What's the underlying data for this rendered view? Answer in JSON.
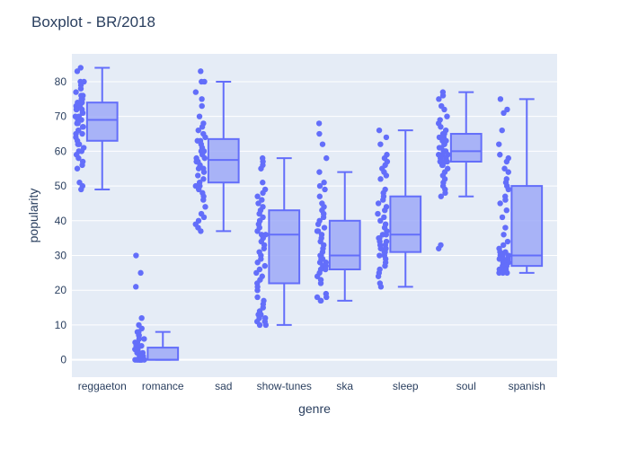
{
  "chart_data": {
    "type": "box",
    "title": "Boxplot - BR/2018",
    "xlabel": "genre",
    "ylabel": "popularity",
    "ylim": [
      -5,
      88
    ],
    "yticks": [
      0,
      10,
      20,
      30,
      40,
      50,
      60,
      70,
      80
    ],
    "grid": true,
    "legend": "none",
    "colors": {
      "plot_bg": "#e5ecf6",
      "grid": "#ffffff",
      "box_fill": "#9ea9f7",
      "box_line": "#636efa",
      "points": "#636efa",
      "text": "#2a3f5f"
    },
    "categories": [
      "reggaeton",
      "romance",
      "sad",
      "show-tunes",
      "ska",
      "sleep",
      "soul",
      "spanish"
    ],
    "boxes": [
      {
        "category": "reggaeton",
        "min": 49,
        "q1": 63,
        "median": 69,
        "q3": 74,
        "max": 84,
        "points": [
          84,
          83,
          80,
          80,
          79,
          78,
          77,
          76,
          76,
          75,
          75,
          74,
          74,
          73,
          73,
          72,
          72,
          72,
          71,
          71,
          70,
          70,
          69,
          69,
          68,
          68,
          67,
          67,
          66,
          66,
          65,
          65,
          64,
          63,
          62,
          62,
          61,
          60,
          60,
          59,
          58,
          57,
          56,
          55,
          51,
          50,
          49
        ]
      },
      {
        "category": "romance",
        "min": 0,
        "q1": 0,
        "median": 0,
        "q3": 3.5,
        "max": 8,
        "points": [
          30,
          25,
          21,
          12,
          10,
          9,
          8,
          8,
          7,
          7,
          6,
          6,
          5,
          5,
          4,
          4,
          3,
          3,
          3,
          2,
          2,
          2,
          1,
          1,
          1,
          1,
          0,
          0,
          0,
          0,
          0,
          0,
          0,
          0,
          0,
          0
        ]
      },
      {
        "category": "sad",
        "min": 37,
        "q1": 51,
        "median": 57.5,
        "q3": 63.5,
        "max": 80,
        "points": [
          83,
          80,
          80,
          77,
          75,
          73,
          70,
          68,
          67,
          66,
          65,
          64,
          63,
          63,
          62,
          61,
          60,
          60,
          59,
          58,
          58,
          57,
          57,
          56,
          55,
          55,
          54,
          53,
          52,
          51,
          50,
          50,
          49,
          48,
          47,
          46,
          44,
          42,
          41,
          40,
          39,
          38,
          37
        ]
      },
      {
        "category": "show-tunes",
        "min": 10,
        "q1": 22,
        "median": 36,
        "q3": 43,
        "max": 58,
        "points": [
          58,
          57,
          56,
          55,
          51,
          49,
          48,
          47,
          46,
          45,
          44,
          43,
          42,
          41,
          40,
          40,
          39,
          38,
          37,
          36,
          36,
          35,
          34,
          33,
          32,
          31,
          30,
          29,
          28,
          27,
          26,
          25,
          24,
          23,
          22,
          21,
          20,
          18,
          17,
          16,
          15,
          14,
          13,
          13,
          12,
          12,
          11,
          11,
          10,
          10
        ]
      },
      {
        "category": "ska",
        "min": 17,
        "q1": 26,
        "median": 30,
        "q3": 40,
        "max": 54,
        "points": [
          68,
          65,
          62,
          58,
          54,
          51,
          50,
          49,
          47,
          45,
          44,
          43,
          42,
          41,
          40,
          39,
          38,
          37,
          37,
          36,
          35,
          34,
          33,
          32,
          31,
          30,
          30,
          29,
          29,
          28,
          28,
          27,
          27,
          26,
          26,
          25,
          24,
          23,
          22,
          19,
          18,
          18,
          17,
          17
        ]
      },
      {
        "category": "sleep",
        "min": 21,
        "q1": 31,
        "median": 36,
        "q3": 47,
        "max": 66,
        "points": [
          66,
          64,
          62,
          59,
          58,
          57,
          56,
          55,
          54,
          53,
          52,
          49,
          48,
          47,
          46,
          45,
          44,
          43,
          42,
          41,
          40,
          39,
          38,
          37,
          36,
          36,
          35,
          35,
          34,
          34,
          33,
          33,
          32,
          32,
          31,
          31,
          30,
          30,
          29,
          28,
          27,
          26,
          25,
          24,
          22,
          21
        ]
      },
      {
        "category": "soul",
        "min": 47,
        "q1": 57,
        "median": 60,
        "q3": 65,
        "max": 77,
        "points": [
          77,
          76,
          75,
          73,
          72,
          70,
          69,
          68,
          67,
          66,
          65,
          65,
          64,
          64,
          63,
          63,
          62,
          62,
          61,
          61,
          60,
          60,
          60,
          59,
          59,
          59,
          58,
          58,
          58,
          57,
          57,
          57,
          56,
          56,
          55,
          54,
          53,
          52,
          51,
          50,
          49,
          48,
          47,
          33,
          32
        ]
      },
      {
        "category": "spanish",
        "min": 25,
        "q1": 27,
        "median": 30,
        "q3": 50,
        "max": 75,
        "points": [
          75,
          72,
          71,
          66,
          62,
          59,
          58,
          57,
          55,
          54,
          52,
          51,
          50,
          49,
          47,
          46,
          45,
          43,
          41,
          38,
          36,
          34,
          33,
          32,
          31,
          31,
          30,
          30,
          30,
          29,
          29,
          29,
          28,
          28,
          28,
          27,
          27,
          27,
          26,
          26,
          26,
          25,
          25,
          25
        ]
      }
    ]
  }
}
